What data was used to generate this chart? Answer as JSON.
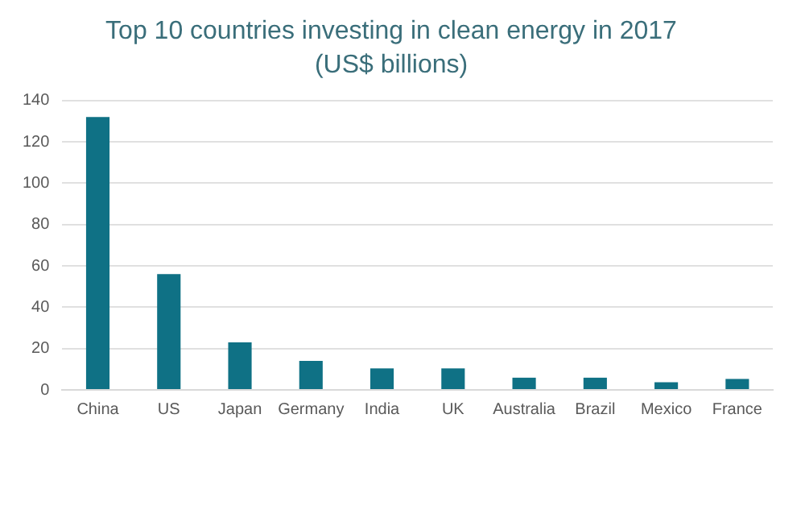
{
  "chart_data": {
    "type": "bar",
    "title": "Top 10 countries investing in clean energy in 2017",
    "subtitle": "(US$ billions)",
    "categories": [
      "China",
      "US",
      "Japan",
      "Germany",
      "India",
      "UK",
      "Australia",
      "Brazil",
      "Mexico",
      "France"
    ],
    "values": [
      132,
      56,
      23,
      14,
      10.4,
      10.4,
      5.9,
      5.9,
      3.7,
      5.3
    ],
    "color": "#0f7185",
    "ylim": [
      0,
      140
    ],
    "yticks": [
      0,
      20,
      40,
      60,
      80,
      100,
      120,
      140
    ],
    "grid": "y"
  }
}
